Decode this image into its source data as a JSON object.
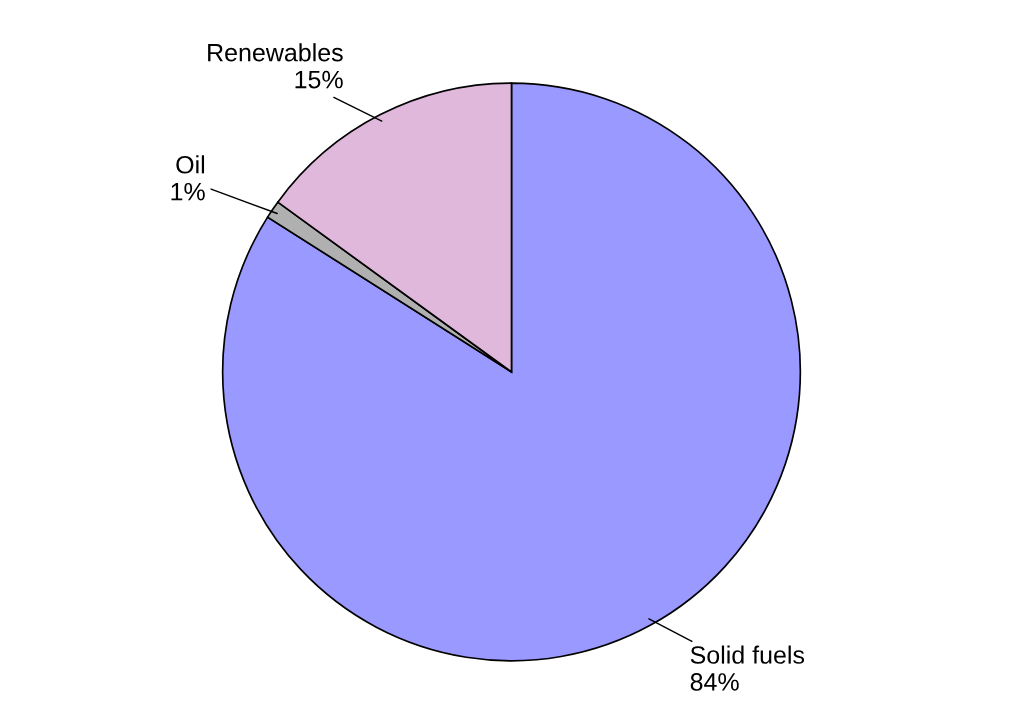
{
  "chart_data": {
    "type": "pie",
    "categories": [
      "Solid fuels",
      "Oil",
      "Renewables"
    ],
    "values": [
      84,
      1,
      15
    ],
    "value_labels": [
      "84%",
      "1%",
      "15%"
    ],
    "colors": [
      "#9999ff",
      "#b0b0b0",
      "#e0b8dc"
    ]
  }
}
